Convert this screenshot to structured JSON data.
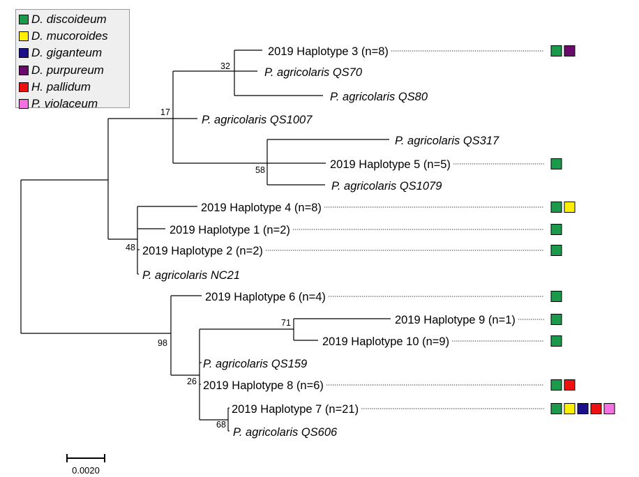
{
  "legend": [
    {
      "label": "D. discoideum",
      "color": "#1a9a4a"
    },
    {
      "label": "D. mucoroides",
      "color": "#ffef00"
    },
    {
      "label": "D. giganteum",
      "color": "#1c0f8c"
    },
    {
      "label": "D. purpureum",
      "color": "#6a0a6a"
    },
    {
      "label": "H. pallidum",
      "color": "#ee1111"
    },
    {
      "label": "P. violaceum",
      "color": "#f570e0"
    }
  ],
  "tips": [
    {
      "label": "2019 Haplotype 3 (n=8)",
      "italic": false,
      "hosts": [
        "D. discoideum",
        "D. purpureum"
      ]
    },
    {
      "label": "P. agricolaris QS70",
      "italic": true,
      "hosts": []
    },
    {
      "label": "P. agricolaris QS80",
      "italic": true,
      "hosts": []
    },
    {
      "label": "P. agricolaris QS1007",
      "italic": true,
      "hosts": []
    },
    {
      "label": "P. agricolaris QS317",
      "italic": true,
      "hosts": []
    },
    {
      "label": "2019 Haplotype 5 (n=5)",
      "italic": false,
      "hosts": [
        "D. discoideum"
      ]
    },
    {
      "label": "P. agricolaris QS1079",
      "italic": true,
      "hosts": []
    },
    {
      "label": "2019 Haplotype 4 (n=8)",
      "italic": false,
      "hosts": [
        "D. discoideum",
        "D. mucoroides"
      ]
    },
    {
      "label": "2019 Haplotype 1 (n=2)",
      "italic": false,
      "hosts": [
        "D. discoideum"
      ]
    },
    {
      "label": "2019 Haplotype 2 (n=2)",
      "italic": false,
      "hosts": [
        "D. discoideum"
      ]
    },
    {
      "label": "P. agricolaris NC21",
      "italic": true,
      "hosts": []
    },
    {
      "label": "2019 Haplotype 6 (n=4)",
      "italic": false,
      "hosts": [
        "D. discoideum"
      ]
    },
    {
      "label": "2019 Haplotype 9 (n=1)",
      "italic": false,
      "hosts": [
        "D. discoideum"
      ]
    },
    {
      "label": "2019 Haplotype 10 (n=9)",
      "italic": false,
      "hosts": [
        "D. discoideum"
      ]
    },
    {
      "label": "P. agricolaris QS159",
      "italic": true,
      "hosts": []
    },
    {
      "label": "2019 Haplotype 8 (n=6)",
      "italic": false,
      "hosts": [
        "D. discoideum",
        "H. pallidum"
      ]
    },
    {
      "label": "2019 Haplotype 7 (n=21)",
      "italic": false,
      "hosts": [
        "D. discoideum",
        "D. mucoroides",
        "D. giganteum",
        "H. pallidum",
        "P. violaceum"
      ]
    },
    {
      "label": "P. agricolaris QS606",
      "italic": true,
      "hosts": []
    }
  ],
  "bootstrap": [
    "17",
    "32",
    "58",
    "48",
    "98",
    "71",
    "26",
    "68"
  ],
  "scale_bar": {
    "label": "0.0020",
    "length": 0.002
  }
}
